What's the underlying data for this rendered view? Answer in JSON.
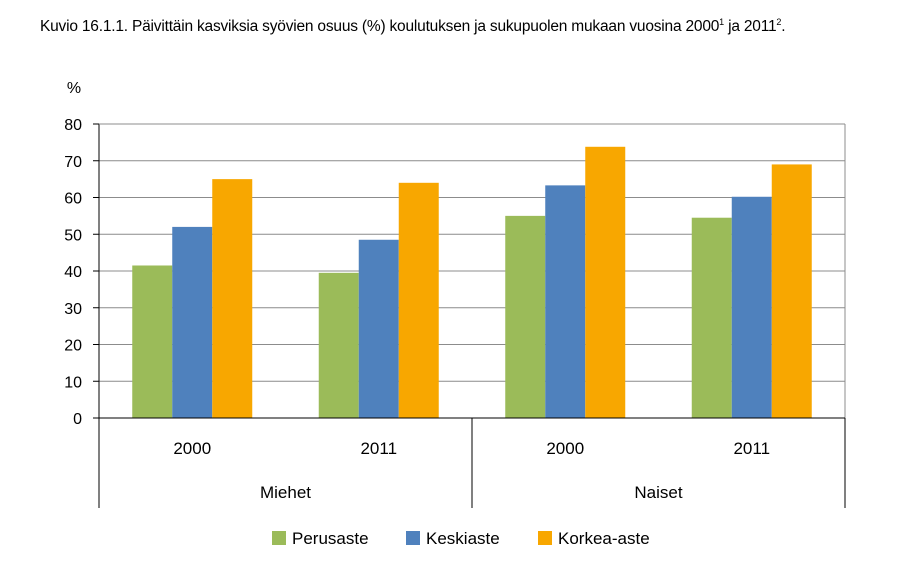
{
  "title": {
    "text": "Kuvio 16.1.1. Päivittäin kasviksia syövien osuus (%) koulutuksen ja sukupuolen mukaan vuosina ",
    "year1": "2000",
    "sup1": "1",
    "mid": " ja ",
    "year2": "2011",
    "sup2": "2",
    "end": "."
  },
  "chart_data": {
    "type": "bar",
    "ylabel": "%",
    "ylim": [
      0,
      80
    ],
    "yticks": [
      0,
      10,
      20,
      30,
      40,
      50,
      60,
      70,
      80
    ],
    "grid": true,
    "groups": [
      {
        "label": "Miehet",
        "categories": [
          "2000",
          "2011"
        ]
      },
      {
        "label": "Naiset",
        "categories": [
          "2000",
          "2011"
        ]
      }
    ],
    "categories": [
      "2000",
      "2011",
      "2000",
      "2011"
    ],
    "series": [
      {
        "name": "Perusaste",
        "color": "#9bbb59",
        "values": [
          41.5,
          39.5,
          55,
          54.5
        ]
      },
      {
        "name": "Keskiaste",
        "color": "#4f81bd",
        "values": [
          52,
          48.5,
          63.3,
          60.2
        ]
      },
      {
        "name": "Korkea-aste",
        "color": "#f8a700",
        "values": [
          65,
          64,
          73.8,
          69
        ]
      }
    ],
    "legend_position": "bottom"
  }
}
